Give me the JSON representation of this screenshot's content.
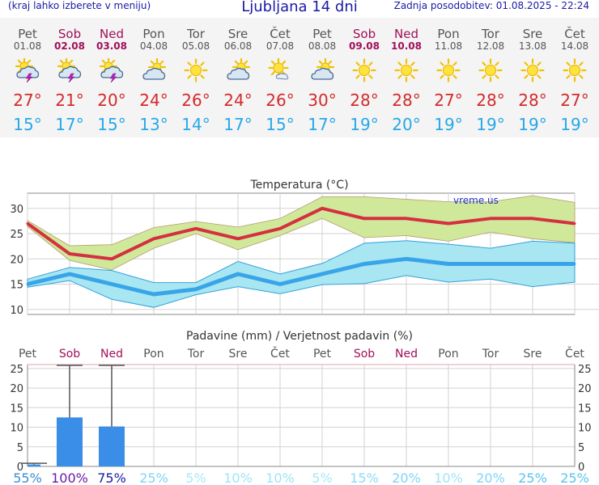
{
  "header": {
    "left_note": "(kraj lahko izberete v meniju)",
    "title": "Ljubljana 14 dni",
    "updated": "Zadnja posodobitev: 01.08.2025 - 22:24"
  },
  "days": [
    {
      "name": "Pet",
      "date": "01.08",
      "weekend": false,
      "icon": "sun-cloud-lightning-icon",
      "tmax": "27°",
      "tmin": "15°"
    },
    {
      "name": "Sob",
      "date": "02.08",
      "weekend": true,
      "icon": "sun-cloud-lightning-icon",
      "tmax": "21°",
      "tmin": "17°"
    },
    {
      "name": "Ned",
      "date": "03.08",
      "weekend": true,
      "icon": "sun-cloud-lightning-icon",
      "tmax": "20°",
      "tmin": "15°"
    },
    {
      "name": "Pon",
      "date": "04.08",
      "weekend": false,
      "icon": "cloud-sun-icon",
      "tmax": "24°",
      "tmin": "13°"
    },
    {
      "name": "Tor",
      "date": "05.08",
      "weekend": false,
      "icon": "sun-icon",
      "tmax": "26°",
      "tmin": "14°"
    },
    {
      "name": "Sre",
      "date": "06.08",
      "weekend": false,
      "icon": "cloud-sun-icon",
      "tmax": "24°",
      "tmin": "17°"
    },
    {
      "name": "Čet",
      "date": "07.08",
      "weekend": false,
      "icon": "sun-light-cloud-icon",
      "tmax": "26°",
      "tmin": "15°"
    },
    {
      "name": "Pet",
      "date": "08.08",
      "weekend": false,
      "icon": "cloud-sun-icon",
      "tmax": "30°",
      "tmin": "17°"
    },
    {
      "name": "Sob",
      "date": "09.08",
      "weekend": true,
      "icon": "sun-icon",
      "tmax": "28°",
      "tmin": "19°"
    },
    {
      "name": "Ned",
      "date": "10.08",
      "weekend": true,
      "icon": "sun-icon",
      "tmax": "28°",
      "tmin": "20°"
    },
    {
      "name": "Pon",
      "date": "11.08",
      "weekend": false,
      "icon": "sun-icon",
      "tmax": "27°",
      "tmin": "19°"
    },
    {
      "name": "Tor",
      "date": "12.08",
      "weekend": false,
      "icon": "sun-icon",
      "tmax": "28°",
      "tmin": "19°"
    },
    {
      "name": "Sre",
      "date": "13.08",
      "weekend": false,
      "icon": "sun-icon",
      "tmax": "28°",
      "tmin": "19°"
    },
    {
      "name": "Čet",
      "date": "14.08",
      "weekend": false,
      "icon": "sun-icon",
      "tmax": "27°",
      "tmin": "19°"
    }
  ],
  "colors": {
    "max_line": "#d43040",
    "max_band": "#cfe89a",
    "min_line": "#39a5e8",
    "min_band": "#a8e6f2",
    "rain_bar": "#3a8ee8",
    "weekend": "#a0105a",
    "weekday": "#555555",
    "header": "#1a1aa6"
  },
  "chart_data": [
    {
      "type": "line",
      "title": "Temperatura (°C)",
      "watermark": "vreme.us",
      "ylim": [
        9,
        33
      ],
      "yticks": [
        10,
        15,
        20,
        25,
        30
      ],
      "grid": true,
      "series": [
        {
          "values": [
            27,
            21,
            20,
            24,
            26,
            24,
            26,
            30,
            28,
            28,
            27,
            28,
            28,
            27
          ],
          "band_upper": [
            27.6,
            22.6,
            22.8,
            26.2,
            27.4,
            26.3,
            28,
            32.3,
            32.3,
            31.8,
            31.3,
            31.3,
            32.5,
            31.2
          ],
          "band_lower": [
            26.4,
            19.7,
            17.8,
            22.1,
            25,
            21.8,
            24.6,
            28,
            24.2,
            24.6,
            23.5,
            25.3,
            24,
            23.2
          ]
        },
        {
          "values": [
            15,
            17,
            15,
            13,
            14,
            17,
            15,
            17,
            19,
            20,
            19,
            19,
            19,
            19
          ],
          "band_upper": [
            16,
            18.3,
            17.7,
            15.3,
            15.3,
            19.5,
            17,
            19.1,
            23.1,
            23.6,
            22.9,
            22.1,
            23.5,
            23.1
          ],
          "band_lower": [
            14.4,
            15.7,
            12,
            10.4,
            12.9,
            14.5,
            13.1,
            14.9,
            15.1,
            16.7,
            15.4,
            16,
            14.5,
            15.4
          ]
        }
      ]
    },
    {
      "type": "bar",
      "title": "Padavine (mm) / Verjetnost padavin (%)",
      "categories": [
        "Pet",
        "Sob",
        "Ned",
        "Pon",
        "Tor",
        "Sre",
        "Čet",
        "Pet",
        "Sob",
        "Ned",
        "Pon",
        "Tor",
        "Sre",
        "Čet"
      ],
      "ylim": [
        0,
        26
      ],
      "yticks": [
        0,
        5,
        10,
        15,
        20,
        25
      ],
      "values": [
        0.5,
        12.5,
        10.2,
        0,
        0,
        0,
        0,
        0,
        0,
        0,
        0,
        0,
        0,
        0
      ],
      "error_upper": [
        0.8,
        25.8,
        25.8,
        0,
        0,
        0,
        0,
        0,
        0,
        0,
        0,
        0,
        0,
        0
      ],
      "probability": [
        "55%",
        "100%",
        "75%",
        "25%",
        "5%",
        "10%",
        "10%",
        "5%",
        "15%",
        "20%",
        "10%",
        "20%",
        "25%",
        "25%"
      ],
      "probability_colors": [
        "#3a8fd0",
        "#6a1aa8",
        "#1a1aa6",
        "#7fd4f5",
        "#a6e8f8",
        "#9de4f7",
        "#9de4f7",
        "#a6e8f8",
        "#8cdcf6",
        "#7fd4f5",
        "#9de4f7",
        "#7fd4f5",
        "#58c4ee",
        "#58c4ee"
      ]
    }
  ]
}
